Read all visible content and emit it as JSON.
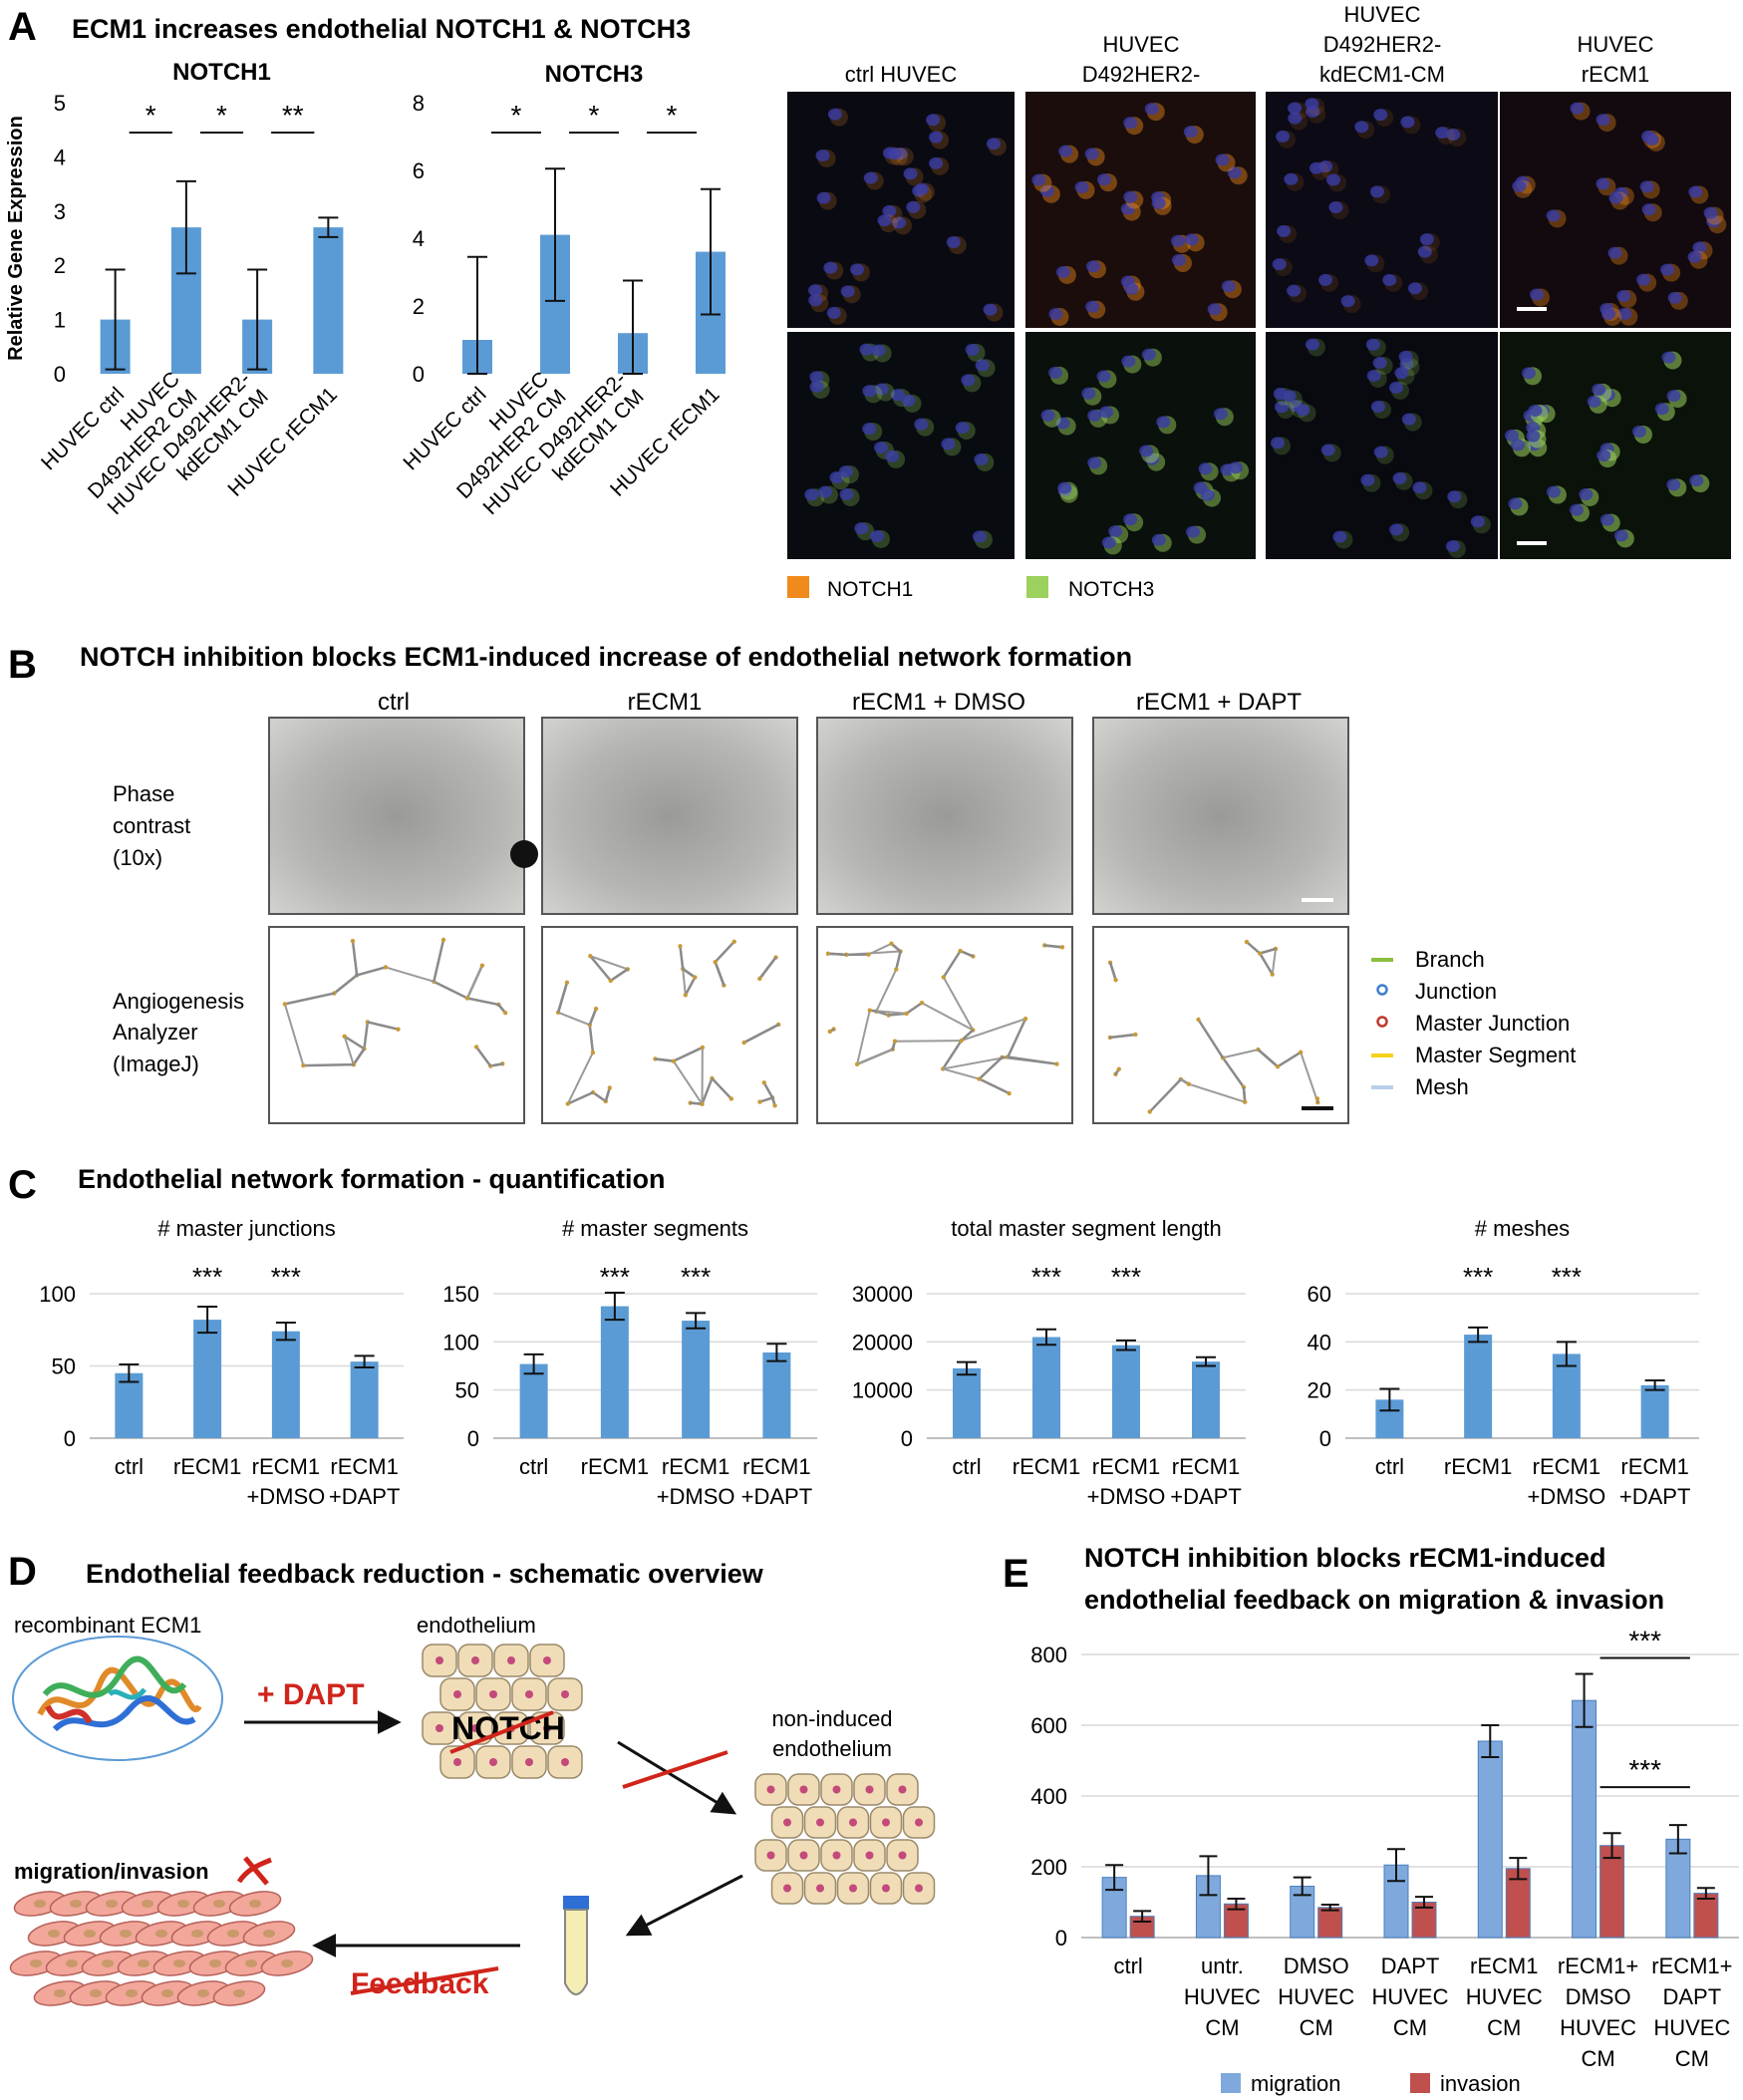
{
  "panel_A": {
    "letter": "A",
    "title": "ECM1 increases endothelial NOTCH1 & NOTCH3",
    "micro_cols": [
      "ctrl HUVEC",
      "HUVEC\nD492HER2-",
      "HUVEC\nD492HER2-\nkdECM1-CM",
      "HUVEC\nrECM1"
    ],
    "legend": [
      {
        "label": "NOTCH1",
        "color": "#f08a1c"
      },
      {
        "label": "NOTCH3",
        "color": "#9bd15c"
      }
    ]
  },
  "panel_B": {
    "letter": "B",
    "title": "NOTCH inhibition blocks ECM1-induced increase of endothelial network formation",
    "cols": [
      "ctrl",
      "rECM1",
      "rECM1 + DMSO",
      "rECM1 + DAPT"
    ],
    "row1_label": [
      "Phase",
      "contrast",
      "(10x)"
    ],
    "row2_label": [
      "Angiogenesis",
      "Analyzer",
      "(ImageJ)"
    ],
    "legend": [
      {
        "label": "Branch",
        "color": "#8cbf3f",
        "kind": "line"
      },
      {
        "label": "Junction",
        "color": "#3f7fcf",
        "kind": "ring"
      },
      {
        "label": "Master Junction",
        "color": "#c0392b",
        "kind": "ring"
      },
      {
        "label": "Master Segment",
        "color": "#f5d31a",
        "kind": "line"
      },
      {
        "label": "Mesh",
        "color": "#b8cfe8",
        "kind": "line"
      }
    ]
  },
  "panel_C": {
    "letter": "C",
    "title": "Endothelial network formation - quantification"
  },
  "panel_D": {
    "letter": "D",
    "title": "Endothelial feedback reduction - schematic overview",
    "recombinant": "recombinant ECM1",
    "endothelium": "endothelium",
    "notch": "NOTCH",
    "dapt": "+ DAPT",
    "non_induced": [
      "non-induced",
      "endothelium"
    ],
    "migration": "migration/invasion",
    "feedback": "Feedback"
  },
  "panel_E": {
    "letter": "E",
    "title": [
      "NOTCH inhibition blocks rECM1-induced",
      "endothelial feedback on migration & invasion"
    ]
  },
  "chart_data": [
    {
      "id": "A1",
      "type": "bar",
      "title": "NOTCH1",
      "ylabel": "Relative Gene Expression",
      "categories": [
        "HUVEC ctrl",
        "HUVEC D492HER2 CM",
        "HUVEC D492HER2-kdECM1 CM",
        "HUVEC rECM1"
      ],
      "tick_labels": [
        [
          "HUVEC ctrl"
        ],
        [
          "HUVEC",
          "D492HER2 CM"
        ],
        [
          "HUVEC D492HER2-",
          "kdECM1 CM"
        ],
        [
          "HUVEC rECM1"
        ]
      ],
      "values": [
        1.0,
        2.7,
        1.0,
        2.7
      ],
      "errors": [
        0.92,
        0.85,
        0.92,
        0.18
      ],
      "ylim": [
        0,
        5
      ],
      "yticks": [
        0,
        1,
        2,
        3,
        4,
        5
      ],
      "color": "#5b9bd5",
      "significance": [
        {
          "from": 0,
          "to": 1,
          "label": "*"
        },
        {
          "from": 1,
          "to": 2,
          "label": "*"
        },
        {
          "from": 2,
          "to": 3,
          "label": "**"
        }
      ]
    },
    {
      "id": "A2",
      "type": "bar",
      "title": "NOTCH3",
      "ylabel": "",
      "categories": [
        "HUVEC ctrl",
        "HUVEC D492HER2 CM",
        "HUVEC D492HER2-kdECM1 CM",
        "HUVEC rECM1"
      ],
      "tick_labels": [
        [
          "HUVEC ctrl"
        ],
        [
          "HUVEC",
          "D492HER2 CM"
        ],
        [
          "HUVEC D492HER2-",
          "kdECM1 CM"
        ],
        [
          "HUVEC rECM1"
        ]
      ],
      "values": [
        1.0,
        4.1,
        1.2,
        3.6
      ],
      "errors": [
        2.45,
        1.95,
        1.55,
        1.85
      ],
      "ylim": [
        0,
        8
      ],
      "yticks": [
        0,
        2,
        4,
        6,
        8
      ],
      "color": "#5b9bd5",
      "significance": [
        {
          "from": 0,
          "to": 1,
          "label": "*"
        },
        {
          "from": 1,
          "to": 2,
          "label": "*"
        },
        {
          "from": 2,
          "to": 3,
          "label": "*"
        }
      ]
    },
    {
      "id": "C1",
      "type": "bar",
      "title": "# master junctions",
      "categories": [
        "ctrl",
        "rECM1",
        "rECM1 +DMSO",
        "rECM1 +DAPT"
      ],
      "tick_labels": [
        [
          "ctrl"
        ],
        [
          "rECM1"
        ],
        [
          "rECM1",
          "+DMSO"
        ],
        [
          "rECM1",
          "+DAPT"
        ]
      ],
      "values": [
        45,
        82,
        74,
        53
      ],
      "errors": [
        6,
        9,
        6,
        4
      ],
      "ylim": [
        0,
        100
      ],
      "yticks": [
        0,
        50,
        100
      ],
      "color": "#5b9bd5",
      "stars": [
        "",
        "***",
        "***",
        ""
      ]
    },
    {
      "id": "C2",
      "type": "bar",
      "title": "# master segments",
      "categories": [
        "ctrl",
        "rECM1",
        "rECM1 +DMSO",
        "rECM1 +DAPT"
      ],
      "tick_labels": [
        [
          "ctrl"
        ],
        [
          "rECM1"
        ],
        [
          "rECM1",
          "+DMSO"
        ],
        [
          "rECM1",
          "+DAPT"
        ]
      ],
      "values": [
        77,
        137,
        122,
        89
      ],
      "errors": [
        10,
        14,
        8,
        9
      ],
      "ylim": [
        0,
        150
      ],
      "yticks": [
        0,
        50,
        100,
        150
      ],
      "color": "#5b9bd5",
      "stars": [
        "",
        "***",
        "***",
        ""
      ]
    },
    {
      "id": "C3",
      "type": "bar",
      "title": "total master segment length",
      "categories": [
        "ctrl",
        "rECM1",
        "rECM1 +DMSO",
        "rECM1 +DAPT"
      ],
      "tick_labels": [
        [
          "ctrl"
        ],
        [
          "rECM1"
        ],
        [
          "rECM1",
          "+DMSO"
        ],
        [
          "rECM1",
          "+DAPT"
        ]
      ],
      "values": [
        14500,
        21000,
        19300,
        15900
      ],
      "errors": [
        1300,
        1600,
        1000,
        900
      ],
      "ylim": [
        0,
        30000
      ],
      "yticks": [
        0,
        10000,
        20000,
        30000
      ],
      "color": "#5b9bd5",
      "stars": [
        "",
        "***",
        "***",
        ""
      ]
    },
    {
      "id": "C4",
      "type": "bar",
      "title": "# meshes",
      "categories": [
        "ctrl",
        "rECM1",
        "rECM1 +DMSO",
        "rECM1 +DAPT"
      ],
      "tick_labels": [
        [
          "ctrl"
        ],
        [
          "rECM1"
        ],
        [
          "rECM1",
          "+DMSO"
        ],
        [
          "rECM1",
          "+DAPT"
        ]
      ],
      "values": [
        16,
        43,
        35,
        22
      ],
      "errors": [
        4.5,
        3,
        5,
        2
      ],
      "ylim": [
        0,
        60
      ],
      "yticks": [
        0,
        20,
        40,
        60
      ],
      "color": "#5b9bd5",
      "stars": [
        "",
        "***",
        "***",
        ""
      ]
    },
    {
      "id": "E",
      "type": "bar",
      "title": "NOTCH inhibition blocks rECM1-induced endothelial feedback on migration & invasion",
      "categories": [
        "ctrl",
        "untr. HUVEC CM",
        "DMSO HUVEC CM",
        "DAPT HUVEC CM",
        "rECM1 HUVEC CM",
        "rECM1+ DMSO HUVEC CM",
        "rECM1+ DAPT HUVEC CM"
      ],
      "tick_labels": [
        [
          "ctrl"
        ],
        [
          "untr.",
          "HUVEC",
          "CM"
        ],
        [
          "DMSO",
          "HUVEC",
          "CM"
        ],
        [
          "DAPT",
          "HUVEC",
          "CM"
        ],
        [
          "rECM1",
          "HUVEC",
          "CM"
        ],
        [
          "rECM1+",
          "DMSO",
          "HUVEC",
          "CM"
        ],
        [
          "rECM1+",
          "DAPT",
          "HUVEC",
          "CM"
        ]
      ],
      "series": [
        {
          "name": "migration",
          "color": "#7fa9dc",
          "values": [
            170,
            175,
            145,
            205,
            555,
            670,
            278
          ],
          "errors": [
            35,
            55,
            25,
            45,
            45,
            75,
            40
          ]
        },
        {
          "name": "invasion",
          "color": "#c0504d",
          "values": [
            60,
            95,
            85,
            100,
            195,
            260,
            125
          ],
          "errors": [
            15,
            15,
            8,
            15,
            30,
            35,
            15
          ]
        }
      ],
      "ylim": [
        0,
        800
      ],
      "yticks": [
        0,
        200,
        400,
        600,
        800
      ],
      "significance": [
        {
          "from": 5,
          "to": 6,
          "label": "***",
          "level": 790
        },
        {
          "from": 5,
          "to": 6,
          "label": "***",
          "level": 425
        }
      ]
    }
  ]
}
